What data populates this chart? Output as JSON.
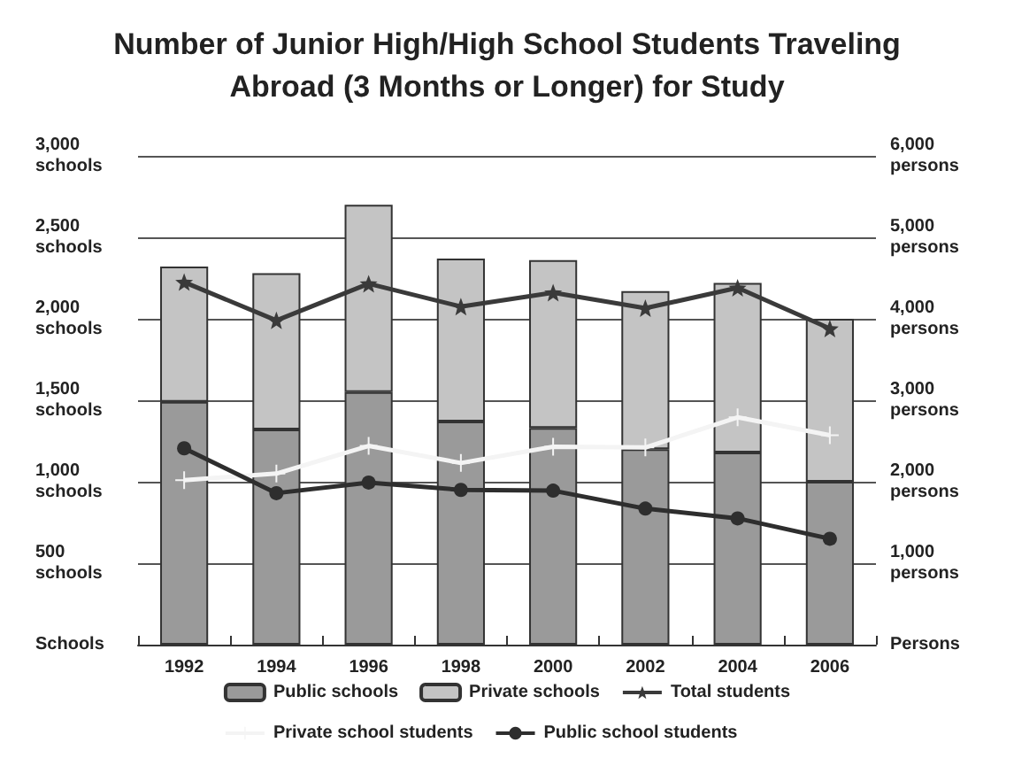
{
  "chart_data": {
    "type": "bar",
    "title": "Number of Junior High/High School Students Traveling\nAbroad (3 Months or Longer) for Study",
    "categories": [
      "1992",
      "1994",
      "1996",
      "1998",
      "2000",
      "2002",
      "2004",
      "2006"
    ],
    "stacked": true,
    "series": [
      {
        "name": "Public schools",
        "color": "#9a9a9a",
        "values": [
          1490,
          1320,
          1550,
          1370,
          1330,
          1200,
          1180,
          1000
        ]
      },
      {
        "name": "Private schools",
        "color": "#c4c4c4",
        "values": [
          830,
          960,
          1150,
          1000,
          1030,
          970,
          1040,
          1000
        ]
      },
      {
        "name": "Total students",
        "type": "line",
        "axis": "y2",
        "marker": "star",
        "color": "#3a3a3a",
        "values": [
          4450,
          3980,
          4430,
          4150,
          4320,
          4130,
          4380,
          3880
        ]
      },
      {
        "name": "Private school students",
        "type": "line",
        "axis": "y2",
        "marker": "cross",
        "color": "#f4f4f4",
        "values": [
          2020,
          2100,
          2440,
          2230,
          2430,
          2420,
          2790,
          2570
        ]
      },
      {
        "name": "Public school students",
        "type": "line",
        "axis": "y2",
        "marker": "circle",
        "color": "#2e2e2e",
        "values": [
          2410,
          1860,
          1990,
          1900,
          1890,
          1670,
          1550,
          1300
        ]
      }
    ],
    "ylim": [
      0,
      3000
    ],
    "yticks": [
      {
        "value": 0,
        "label": "Schools"
      },
      {
        "value": 500,
        "label": "500\nschools"
      },
      {
        "value": 1000,
        "label": "1,000\nschools"
      },
      {
        "value": 1500,
        "label": "1,500\nschools"
      },
      {
        "value": 2000,
        "label": "2,000\nschools"
      },
      {
        "value": 2500,
        "label": "2,500\nschools"
      },
      {
        "value": 3000,
        "label": "3,000\nschools"
      }
    ],
    "y2lim": [
      0,
      6000
    ],
    "y2ticks": [
      {
        "value": 0,
        "label": "Persons"
      },
      {
        "value": 1000,
        "label": "1,000\npersons"
      },
      {
        "value": 2000,
        "label": "2,000\npersons"
      },
      {
        "value": 3000,
        "label": "3,000\npersons"
      },
      {
        "value": 4000,
        "label": "4,000\npersons"
      },
      {
        "value": 5000,
        "label": "5,000\npersons"
      },
      {
        "value": 6000,
        "label": "6,000\npersons"
      }
    ],
    "grid": "y",
    "legend": "bottom"
  }
}
